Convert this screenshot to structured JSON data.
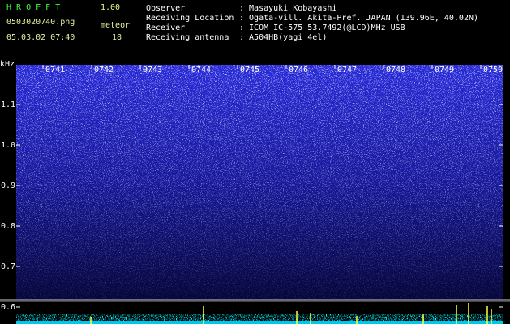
{
  "header": {
    "title": "H R O F F T",
    "version": "1.00",
    "file": "0503020740.png",
    "datetime": "05.03.02 07:40",
    "meteor_label": "meteor",
    "meteor_count": 18
  },
  "info": [
    {
      "label": "Observer",
      "value": ": Masayuki Kobayashi"
    },
    {
      "label": "Receiving Location",
      "value": ": Ogata-vill. Akita-Pref. JAPAN (139.96E, 40.02N)"
    },
    {
      "label": "Receiver",
      "value": ": ICOM IC-575 53.7492(@LCD)MHz USB"
    },
    {
      "label": "Receiving antenna",
      "value": ": A504HB(yagi 4el)"
    }
  ],
  "spectrogram": {
    "unit": "kHz",
    "times": [
      "0741",
      "0742",
      "0743",
      "0744",
      "0745",
      "0746",
      "0747",
      "0748",
      "0749",
      "0750"
    ],
    "yticks": [
      1.1,
      {
        "value": 1,
        "label": "1.0"
      },
      0.9,
      0.8,
      0.7,
      0.6
    ]
  }
}
